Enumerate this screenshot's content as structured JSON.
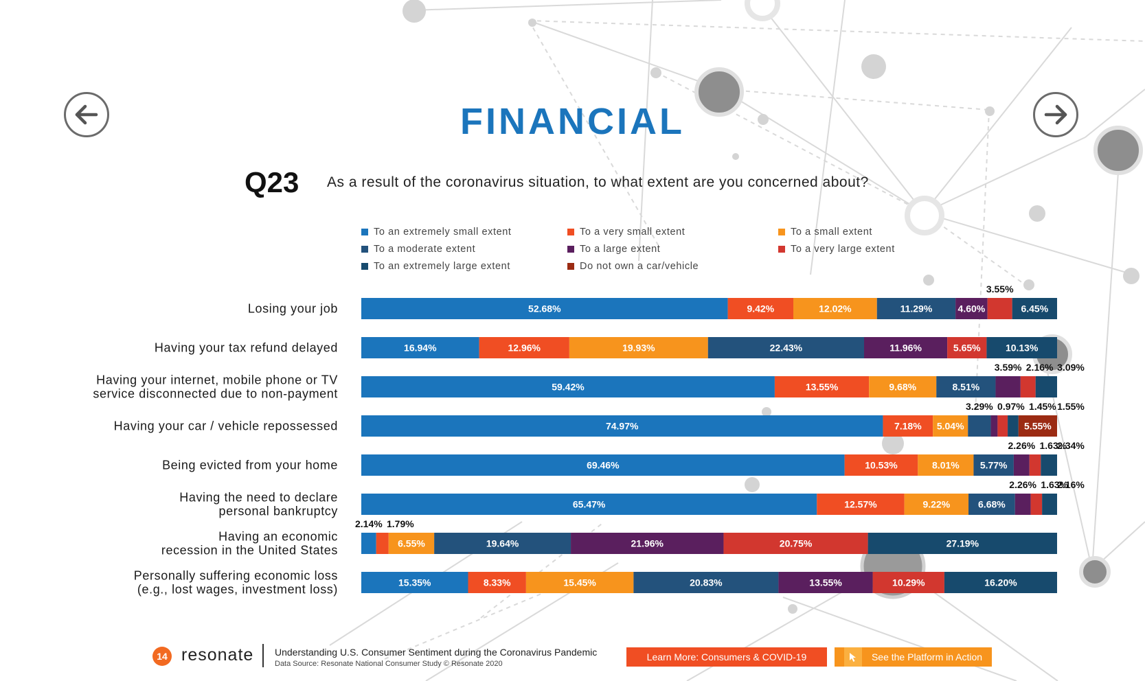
{
  "header": {
    "title": "FINANCIAL",
    "question_number": "Q23",
    "question_text": "As a result of the coronavirus situation, to what extent are you concerned about?"
  },
  "nav": {
    "prev_icon": "arrow-left-icon",
    "next_icon": "arrow-right-icon"
  },
  "colors": {
    "title": "#1b75bc",
    "series": [
      "#1b75bc",
      "#f04e23",
      "#f7941d",
      "#23527c",
      "#5a1f5e",
      "#d2372f",
      "#174a6d",
      "#9b2b13"
    ]
  },
  "chart_data": {
    "type": "bar",
    "orientation": "horizontal",
    "stacked": true,
    "xlim": [
      0,
      100
    ],
    "legend_placement": "top",
    "categories": [
      "Losing your job",
      "Having your tax refund delayed",
      "Having your internet, mobile phone or TV service disconnected due to non-payment",
      "Having your car / vehicle repossessed",
      "Being evicted from your home",
      "Having the need to declare personal bankruptcy",
      "Having an economic recession in the United States",
      "Personally suffering economic loss (e.g., lost wages, investment loss)"
    ],
    "category_lines": [
      [
        "Losing your job"
      ],
      [
        "Having your tax refund delayed"
      ],
      [
        "Having your internet, mobile phone or TV",
        "service disconnected due to non-payment"
      ],
      [
        "Having your car / vehicle repossessed"
      ],
      [
        "Being evicted from your home"
      ],
      [
        "Having the need to declare",
        "personal bankruptcy"
      ],
      [
        "Having an economic",
        "recession in the United States"
      ],
      [
        "Personally suffering economic loss",
        "(e.g., lost wages, investment loss)"
      ]
    ],
    "series": [
      {
        "name": "To an extremely small extent",
        "values": [
          52.68,
          16.94,
          59.42,
          74.97,
          69.46,
          65.47,
          2.14,
          15.35
        ],
        "labels": [
          "52.68%",
          "16.94%",
          "59.42%",
          "74.97%",
          "69.46%",
          "65.47%",
          "2.14%",
          "15.35%"
        ]
      },
      {
        "name": "To a very small extent",
        "values": [
          9.42,
          12.96,
          13.55,
          7.18,
          10.53,
          12.57,
          1.79,
          8.33
        ],
        "labels": [
          "9.42%",
          "12.96%",
          "13.55%",
          "7.18%",
          "10.53%",
          "12.57%",
          "1.79%",
          "8.33%"
        ]
      },
      {
        "name": "To a small extent",
        "values": [
          12.02,
          19.93,
          9.68,
          5.04,
          8.01,
          9.22,
          6.55,
          15.45
        ],
        "labels": [
          "12.02%",
          "19.93%",
          "9.68%",
          "5.04%",
          "8.01%",
          "9.22%",
          "6.55%",
          "15.45%"
        ]
      },
      {
        "name": "To a moderate extent",
        "values": [
          11.29,
          22.43,
          8.51,
          3.29,
          5.77,
          6.68,
          19.64,
          20.83
        ],
        "labels": [
          "11.29%",
          "22.43%",
          "8.51%",
          "3.29%",
          "5.77%",
          "6.68%",
          "19.64%",
          "20.83%"
        ]
      },
      {
        "name": "To a large extent",
        "values": [
          4.6,
          11.96,
          3.59,
          0.97,
          2.26,
          2.26,
          21.96,
          13.55
        ],
        "labels": [
          "4.60%",
          "11.96%",
          "3.59%",
          "0.97%",
          "2.26%",
          "2.26%",
          "21.96%",
          "13.55%"
        ]
      },
      {
        "name": "To a very large extent",
        "values": [
          3.55,
          5.65,
          2.16,
          1.45,
          1.63,
          1.63,
          20.75,
          10.29
        ],
        "labels": [
          "3.55%",
          "5.65%",
          "2.16%",
          "1.45%",
          "1.63%",
          "1.63%",
          "20.75%",
          "10.29%"
        ]
      },
      {
        "name": "To an extremely large extent",
        "values": [
          6.45,
          10.13,
          3.09,
          1.55,
          2.34,
          2.16,
          27.19,
          16.2
        ],
        "labels": [
          "6.45%",
          "10.13%",
          "3.09%",
          "1.55%",
          "2.34%",
          "2.16%",
          "27.19%",
          "16.20%"
        ]
      },
      {
        "name": "Do not own a car/vehicle",
        "values": [
          0,
          0,
          0,
          5.55,
          0,
          0,
          0,
          0
        ],
        "labels": [
          "",
          "",
          "",
          "5.55%",
          "",
          "",
          "",
          ""
        ]
      }
    ]
  },
  "footer": {
    "page_number": "14",
    "logo": "resonate",
    "title": "Understanding U.S. Consumer Sentiment during the Coronavirus Pandemic",
    "source": "Data Source: Resonate National Consumer Study © Resonate 2020",
    "learn_more_label": "Learn More: Consumers & COVID-19",
    "platform_label": "See the Platform in Action",
    "platform_icon": "pointer-icon"
  }
}
